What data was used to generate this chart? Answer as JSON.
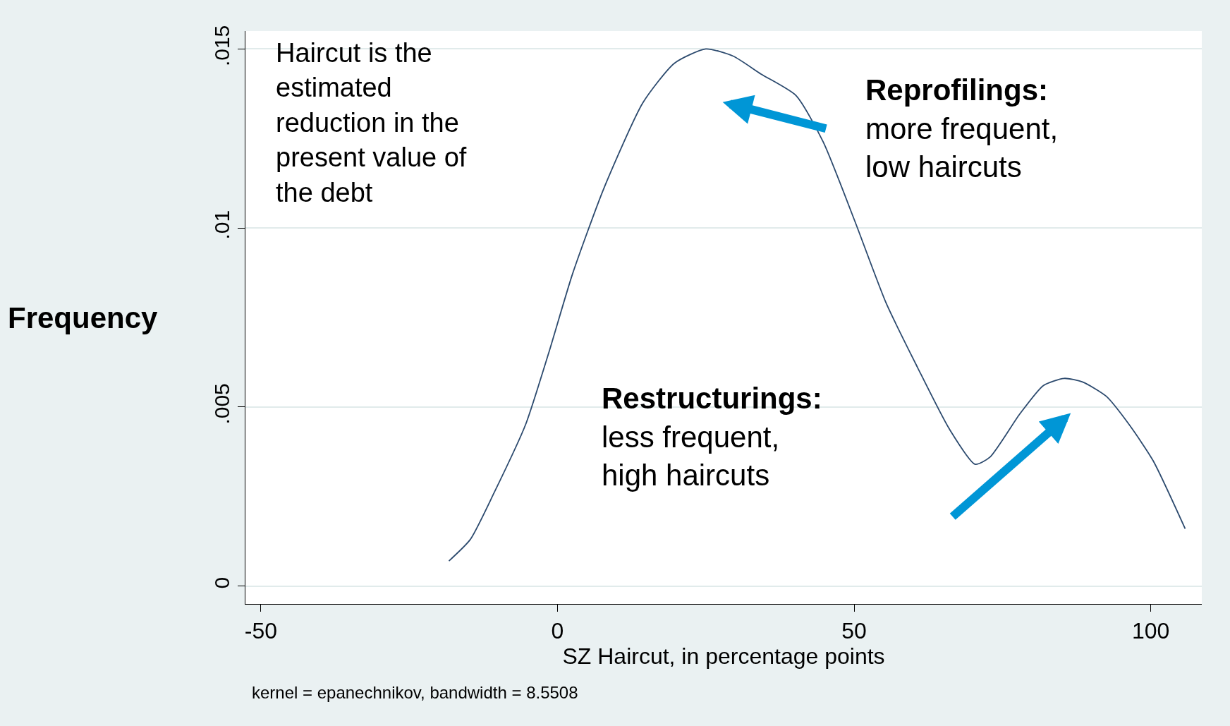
{
  "chart_data": {
    "type": "line",
    "xlabel": "SZ Haircut, in percentage points",
    "ylabel": "Frequency",
    "x": [
      -18.3,
      -14.7,
      -10.7,
      -5.4,
      -1.5,
      2.5,
      7.8,
      14.4,
      19.7,
      25.0,
      29.6,
      34.3,
      40.2,
      44.8,
      50.1,
      55.4,
      60.7,
      66.0,
      70.4,
      72.9,
      77.9,
      81.9,
      85.4,
      88.5,
      92.5,
      96.4,
      100.4,
      105.8
    ],
    "series": [
      {
        "color": "#2c4a6e",
        "values": [
          0.0007,
          0.0013,
          0.0026,
          0.0045,
          0.0065,
          0.0087,
          0.0111,
          0.0135,
          0.0146,
          0.015,
          0.0148,
          0.0143,
          0.0137,
          0.0124,
          0.0102,
          0.0079,
          0.0061,
          0.0044,
          0.0034,
          0.0036,
          0.0048,
          0.0056,
          0.0058,
          0.0057,
          0.0053,
          0.0045,
          0.0035,
          0.0016
        ]
      }
    ],
    "xlim": [
      -52.6,
      108.6
    ],
    "ylim": [
      -0.0005,
      0.0155
    ],
    "xticks": [
      -50,
      0,
      50,
      100
    ],
    "yticks": [
      {
        "value": 0,
        "label": "0"
      },
      {
        "value": 0.005,
        "label": ".005"
      },
      {
        "value": 0.01,
        "label": ".01"
      },
      {
        "value": 0.015,
        "label": ".015"
      }
    ],
    "grid": "y",
    "marker": "none",
    "line_style": "solid",
    "annotations": [
      "Haircut is the\nestimated\nreduction in the\npresent value of\nthe debt",
      "Reprofilings:\nmore frequent,\nlow haircuts",
      "Restructurings:\nless frequent,\nhigh haircuts",
      "kernel = epanechnikov, bandwidth = 8.5508"
    ]
  }
}
